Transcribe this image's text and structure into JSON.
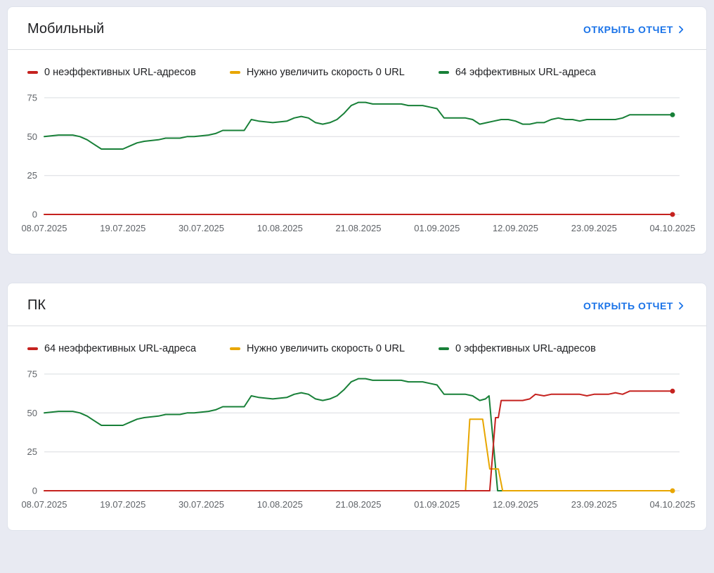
{
  "colors": {
    "accent": "#1a73e8",
    "poor": "#c5221f",
    "needs_improvement": "#e8a600",
    "good": "#188038",
    "axis_text": "#5f6368",
    "gridline": "#dadce0",
    "page_background": "#e8eaf2",
    "card_background": "#ffffff"
  },
  "cards": [
    {
      "title": "Мобильный",
      "report_link": "ОТКРЫТЬ ОТЧЕТ",
      "legend": [
        {
          "label": "0 неэффективных URL-адресов",
          "color": "#c5221f"
        },
        {
          "label": "Нужно увеличить скорость 0 URL",
          "color": "#e8a600"
        },
        {
          "label": "64 эффективных URL-адреса",
          "color": "#188038"
        }
      ]
    },
    {
      "title": "ПК",
      "report_link": "ОТКРЫТЬ ОТЧЕТ",
      "legend": [
        {
          "label": "64 неэффективных URL-адреса",
          "color": "#c5221f"
        },
        {
          "label": "Нужно увеличить скорость 0 URL",
          "color": "#e8a600"
        },
        {
          "label": "0 эффективных URL-адресов",
          "color": "#188038"
        }
      ]
    }
  ],
  "chart_data": [
    {
      "type": "line",
      "title": "Мобильный — Core Web Vitals",
      "xlabel": "",
      "ylabel": "",
      "grid": true,
      "legend_position": "top",
      "ylim": [
        0,
        75
      ],
      "y_ticks": [
        0,
        25,
        50,
        75
      ],
      "x_range": [
        0,
        88
      ],
      "x_ticks": [
        "08.07.2025",
        "19.07.2025",
        "30.07.2025",
        "10.08.2025",
        "21.08.2025",
        "01.09.2025",
        "12.09.2025",
        "23.09.2025",
        "04.10.2025"
      ],
      "x_tick_days": [
        0,
        11,
        22,
        33,
        44,
        55,
        66,
        77,
        88
      ],
      "series": [
        {
          "name": "Нужно увеличить скорость 0 URL",
          "color": "#e8a600",
          "end_dot": false,
          "points": [
            [
              0,
              0
            ],
            [
              88,
              0
            ]
          ]
        },
        {
          "name": "0 неэффективных URL-адресов",
          "color": "#c5221f",
          "end_dot": true,
          "points": [
            [
              0,
              0
            ],
            [
              88,
              0
            ]
          ]
        },
        {
          "name": "64 эффективных URL-адреса",
          "color": "#188038",
          "end_dot": true,
          "points": [
            [
              0,
              50
            ],
            [
              2,
              51
            ],
            [
              4,
              51
            ],
            [
              5,
              50
            ],
            [
              6,
              48
            ],
            [
              7,
              45
            ],
            [
              8,
              42
            ],
            [
              10,
              42
            ],
            [
              11,
              42
            ],
            [
              12,
              44
            ],
            [
              13,
              46
            ],
            [
              14,
              47
            ],
            [
              16,
              48
            ],
            [
              17,
              49
            ],
            [
              19,
              49
            ],
            [
              20,
              50
            ],
            [
              21,
              50
            ],
            [
              23,
              51
            ],
            [
              24,
              52
            ],
            [
              25,
              54
            ],
            [
              27,
              54
            ],
            [
              28,
              54
            ],
            [
              29,
              61
            ],
            [
              30,
              60
            ],
            [
              32,
              59
            ],
            [
              34,
              60
            ],
            [
              35,
              62
            ],
            [
              36,
              63
            ],
            [
              37,
              62
            ],
            [
              38,
              59
            ],
            [
              39,
              58
            ],
            [
              40,
              59
            ],
            [
              41,
              61
            ],
            [
              42,
              65
            ],
            [
              43,
              70
            ],
            [
              44,
              72
            ],
            [
              45,
              72
            ],
            [
              46,
              71
            ],
            [
              48,
              71
            ],
            [
              50,
              71
            ],
            [
              51,
              70
            ],
            [
              53,
              70
            ],
            [
              54,
              69
            ],
            [
              55,
              68
            ],
            [
              56,
              62
            ],
            [
              58,
              62
            ],
            [
              59,
              62
            ],
            [
              60,
              61
            ],
            [
              61,
              58
            ],
            [
              62,
              59
            ],
            [
              63,
              60
            ],
            [
              64,
              61
            ],
            [
              65,
              61
            ],
            [
              66,
              60
            ],
            [
              67,
              58
            ],
            [
              68,
              58
            ],
            [
              69,
              59
            ],
            [
              70,
              59
            ],
            [
              71,
              61
            ],
            [
              72,
              62
            ],
            [
              73,
              61
            ],
            [
              74,
              61
            ],
            [
              75,
              60
            ],
            [
              76,
              61
            ],
            [
              78,
              61
            ],
            [
              80,
              61
            ],
            [
              81,
              62
            ],
            [
              82,
              64
            ],
            [
              84,
              64
            ],
            [
              86,
              64
            ],
            [
              88,
              64
            ]
          ]
        }
      ]
    },
    {
      "type": "line",
      "title": "ПК — Core Web Vitals",
      "xlabel": "",
      "ylabel": "",
      "grid": true,
      "legend_position": "top",
      "ylim": [
        0,
        75
      ],
      "y_ticks": [
        0,
        25,
        50,
        75
      ],
      "x_range": [
        0,
        88
      ],
      "x_ticks": [
        "08.07.2025",
        "19.07.2025",
        "30.07.2025",
        "10.08.2025",
        "21.08.2025",
        "01.09.2025",
        "12.09.2025",
        "23.09.2025",
        "04.10.2025"
      ],
      "x_tick_days": [
        0,
        11,
        22,
        33,
        44,
        55,
        66,
        77,
        88
      ],
      "series": [
        {
          "name": "0 эффективных URL-адресов",
          "color": "#188038",
          "end_dot": false,
          "points": [
            [
              0,
              50
            ],
            [
              2,
              51
            ],
            [
              4,
              51
            ],
            [
              5,
              50
            ],
            [
              6,
              48
            ],
            [
              7,
              45
            ],
            [
              8,
              42
            ],
            [
              10,
              42
            ],
            [
              11,
              42
            ],
            [
              12,
              44
            ],
            [
              13,
              46
            ],
            [
              14,
              47
            ],
            [
              16,
              48
            ],
            [
              17,
              49
            ],
            [
              19,
              49
            ],
            [
              20,
              50
            ],
            [
              21,
              50
            ],
            [
              23,
              51
            ],
            [
              24,
              52
            ],
            [
              25,
              54
            ],
            [
              27,
              54
            ],
            [
              28,
              54
            ],
            [
              29,
              61
            ],
            [
              30,
              60
            ],
            [
              32,
              59
            ],
            [
              34,
              60
            ],
            [
              35,
              62
            ],
            [
              36,
              63
            ],
            [
              37,
              62
            ],
            [
              38,
              59
            ],
            [
              39,
              58
            ],
            [
              40,
              59
            ],
            [
              41,
              61
            ],
            [
              42,
              65
            ],
            [
              43,
              70
            ],
            [
              44,
              72
            ],
            [
              45,
              72
            ],
            [
              46,
              71
            ],
            [
              48,
              71
            ],
            [
              50,
              71
            ],
            [
              51,
              70
            ],
            [
              53,
              70
            ],
            [
              54,
              69
            ],
            [
              55,
              68
            ],
            [
              56,
              62
            ],
            [
              58,
              62
            ],
            [
              59,
              62
            ],
            [
              60,
              61
            ],
            [
              61,
              58
            ],
            [
              61.8,
              59
            ],
            [
              62.3,
              61
            ],
            [
              63.5,
              0
            ],
            [
              88,
              0
            ]
          ]
        },
        {
          "name": "Нужно увеличить скорость 0 URL",
          "color": "#e8a600",
          "end_dot": true,
          "points": [
            [
              0,
              0
            ],
            [
              58,
              0
            ],
            [
              59,
              0
            ],
            [
              59.6,
              46
            ],
            [
              61.4,
              46
            ],
            [
              62.4,
              14
            ],
            [
              63.6,
              14
            ],
            [
              64.2,
              0
            ],
            [
              88,
              0
            ]
          ]
        },
        {
          "name": "64 неэффективных URL-адреса",
          "color": "#c5221f",
          "end_dot": true,
          "points": [
            [
              0,
              0
            ],
            [
              62.4,
              0
            ],
            [
              63.2,
              47
            ],
            [
              63.6,
              47
            ],
            [
              64,
              58
            ],
            [
              65.5,
              58
            ],
            [
              67,
              58
            ],
            [
              68,
              59
            ],
            [
              68.8,
              62
            ],
            [
              70,
              61
            ],
            [
              71,
              62
            ],
            [
              73,
              62
            ],
            [
              75,
              62
            ],
            [
              76,
              61
            ],
            [
              77,
              62
            ],
            [
              79,
              62
            ],
            [
              80,
              63
            ],
            [
              81,
              62
            ],
            [
              82,
              64
            ],
            [
              84,
              64
            ],
            [
              86,
              64
            ],
            [
              88,
              64
            ]
          ]
        }
      ]
    }
  ]
}
